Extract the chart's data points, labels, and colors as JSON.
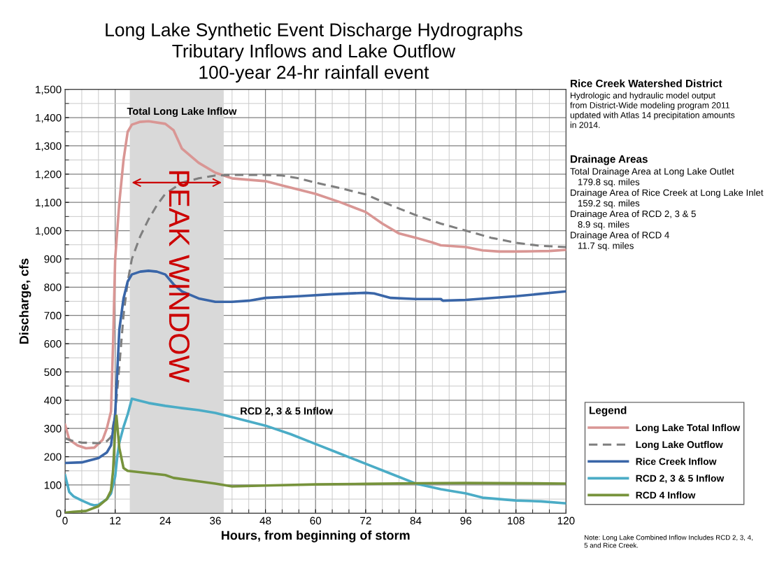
{
  "chart_data": {
    "type": "line",
    "title": "Long Lake Synthetic Event Discharge Hydrographs\nTributary Inflows and Lake Outflow\n100-year 24-hr rainfall event",
    "xlabel": "Hours, from beginning of storm",
    "ylabel": "Discharge, cfs",
    "legend_title": "Legend",
    "legend": "bottom right",
    "grid": true,
    "marker": "none",
    "xlim": [
      0,
      120
    ],
    "xticks": [
      0,
      12,
      24,
      36,
      48,
      60,
      72,
      84,
      96,
      108,
      120
    ],
    "ylim": [
      0,
      1500
    ],
    "yticks": [
      0,
      100,
      200,
      300,
      400,
      500,
      600,
      700,
      800,
      900,
      {
        "value": 1000,
        "label": "1,000"
      },
      {
        "value": 1100,
        "label": "1,100"
      },
      {
        "value": 1200,
        "label": "1,200"
      },
      {
        "value": 1300,
        "label": "1,300"
      },
      {
        "value": 1400,
        "label": "1,400"
      },
      {
        "value": 1500,
        "label": "1,500"
      }
    ],
    "bands": [
      {
        "axis": "x",
        "from": 15.5,
        "to": 38,
        "label": "PEAK WINDOW",
        "color": "#d9d9d9"
      }
    ],
    "series": [
      {
        "name": "Long Lake Total Inflow",
        "color": "#d99694",
        "line_style": "solid",
        "x": [
          0,
          1,
          3,
          5,
          7,
          9,
          10,
          11,
          11.5,
          12,
          13,
          14,
          15,
          16,
          18,
          20,
          24,
          26,
          28,
          32,
          36,
          38,
          40,
          48,
          52,
          56,
          60,
          66,
          72,
          76,
          80,
          84,
          88,
          90,
          96,
          100,
          104,
          108,
          116,
          120
        ],
        "values": [
          313,
          260,
          240,
          230,
          232,
          260,
          300,
          360,
          600,
          900,
          1100,
          1250,
          1350,
          1375,
          1385,
          1387,
          1378,
          1355,
          1290,
          1240,
          1205,
          1195,
          1185,
          1175,
          1160,
          1145,
          1130,
          1100,
          1066,
          1025,
          990,
          975,
          958,
          948,
          942,
          930,
          926,
          926,
          928,
          932
        ]
      },
      {
        "name": "Long Lake Outflow",
        "color": "#7f7f7f",
        "line_style": "dashed",
        "x": [
          0,
          2,
          4,
          8,
          10,
          11,
          12,
          13,
          14,
          15,
          16,
          18,
          20,
          22,
          24,
          28,
          32,
          36,
          40,
          48,
          52,
          56,
          60,
          66,
          72,
          78,
          84,
          90,
          96,
          102,
          108,
          114,
          120
        ],
        "values": [
          265,
          255,
          250,
          248,
          255,
          270,
          350,
          520,
          700,
          820,
          900,
          980,
          1040,
          1090,
          1130,
          1170,
          1185,
          1195,
          1197,
          1197,
          1195,
          1185,
          1170,
          1150,
          1128,
          1090,
          1055,
          1025,
          1000,
          975,
          957,
          946,
          942
        ]
      },
      {
        "name": "Rice Creek Inflow",
        "color": "#3a66a8",
        "line_style": "solid",
        "x": [
          0,
          4,
          8,
          10,
          11,
          12,
          12.5,
          13,
          14,
          15,
          16,
          18,
          20,
          22,
          24,
          26,
          28,
          32,
          36,
          40,
          44,
          48,
          56,
          64,
          72,
          74,
          78,
          84,
          90,
          90.5,
          96,
          108,
          120
        ],
        "values": [
          178,
          180,
          195,
          215,
          240,
          350,
          500,
          650,
          760,
          820,
          845,
          855,
          858,
          855,
          845,
          810,
          785,
          760,
          748,
          748,
          752,
          762,
          768,
          775,
          780,
          778,
          762,
          758,
          758,
          752,
          755,
          768,
          785
        ]
      },
      {
        "name": "RCD 2, 3 & 5 Inflow",
        "color": "#4bacc6",
        "line_style": "solid",
        "x": [
          0,
          1,
          2,
          4,
          6,
          7,
          8,
          10,
          11,
          12,
          12.5,
          13,
          14,
          15,
          16,
          20,
          24,
          28,
          32,
          36,
          40,
          48,
          54,
          60,
          66,
          72,
          78,
          84,
          90,
          96,
          100,
          108,
          114,
          120
        ],
        "values": [
          135,
          75,
          60,
          45,
          32,
          28,
          30,
          50,
          70,
          130,
          200,
          250,
          305,
          350,
          405,
          390,
          380,
          372,
          365,
          355,
          340,
          310,
          280,
          245,
          210,
          175,
          140,
          105,
          85,
          70,
          55,
          45,
          42,
          35
        ]
      },
      {
        "name": "RCD 4 Inflow",
        "color": "#77933c",
        "line_style": "solid",
        "x": [
          0,
          2,
          5,
          8,
          10,
          11,
          11.5,
          12,
          12.3,
          13,
          14,
          15,
          18,
          24,
          26,
          32,
          36,
          40,
          48,
          60,
          72,
          84,
          96,
          120
        ],
        "values": [
          2,
          5,
          8,
          25,
          50,
          80,
          150,
          300,
          345,
          230,
          160,
          150,
          145,
          135,
          125,
          113,
          105,
          95,
          98,
          102,
          104,
          106,
          107,
          105
        ]
      }
    ],
    "annotations": [
      "Total Long Lake Inflow",
      "RCD 2, 3 & 5 Inflow",
      "Rice Creek Watershed District",
      "Hydrologic and hydraulic model output\nfrom District-Wide modeling program 2011\nupdated with Atlas 14 precipitation amounts\nin 2014.",
      "Drainage Areas",
      "Total Drainage Area at Long Lake Outlet\n   179.8 sq. miles\nDrainage Area of Rice Creek at Long Lake Inlet\n   159.2 sq. miles\nDrainage Area of RCD 2, 3 & 5\n   8.9 sq. miles\nDrainage Area of RCD 4\n   11.7 sq. miles",
      "Note: Long Lake Combined Inflow Includes RCD 2, 3, 4,\n5 and Rice Creek."
    ]
  }
}
